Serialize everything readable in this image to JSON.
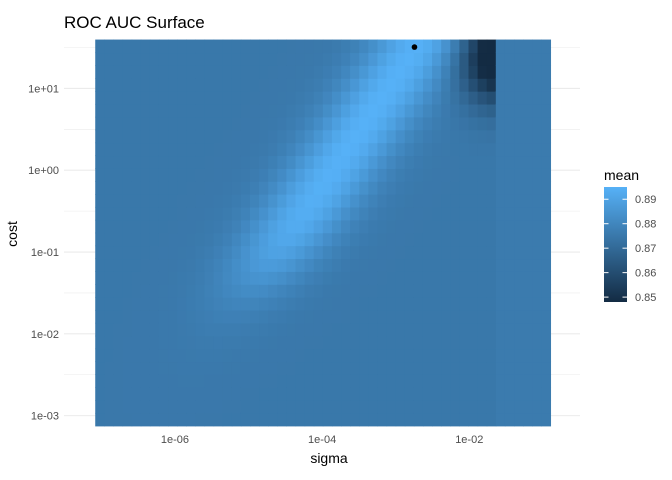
{
  "chart_data": {
    "type": "heatmap",
    "title": "ROC AUC Surface",
    "xlabel": "sigma",
    "ylabel": "cost",
    "x_scale": "log10",
    "y_scale": "log10",
    "xlim": [
      3.1e-08,
      0.32
    ],
    "ylim": [
      0.00079,
      33
    ],
    "x_ticks": [
      {
        "value": 1e-06,
        "label": "1e-06"
      },
      {
        "value": 0.0001,
        "label": "1e-04"
      },
      {
        "value": 0.01,
        "label": "1e-02"
      }
    ],
    "y_ticks": [
      {
        "value": 0.001,
        "label": "1e-03"
      },
      {
        "value": 0.01,
        "label": "1e-02"
      },
      {
        "value": 0.1,
        "label": "1e-01"
      },
      {
        "value": 1,
        "label": "1e+00"
      },
      {
        "value": 10,
        "label": "1e+01"
      }
    ],
    "grid": true,
    "fill_variable": "mean",
    "value_range": [
      0.848,
      0.895
    ],
    "color_low": "#132B43",
    "color_high": "#56B1F7",
    "legend": {
      "title": "mean",
      "position": "right",
      "breaks": [
        0.85,
        0.86,
        0.87,
        0.88,
        0.89
      ],
      "labels": [
        "0.85",
        "0.86",
        "0.87",
        "0.88",
        "0.89"
      ]
    },
    "surface_summary": {
      "baseline_mean": 0.875,
      "right_edge_mean": 0.88,
      "ridge_peak_mean": 0.895,
      "low_region_mean": 0.849,
      "low_region_at": {
        "sigma": 0.025,
        "cost": 25
      }
    },
    "best_point": {
      "sigma": 0.0018,
      "cost": 32
    }
  }
}
